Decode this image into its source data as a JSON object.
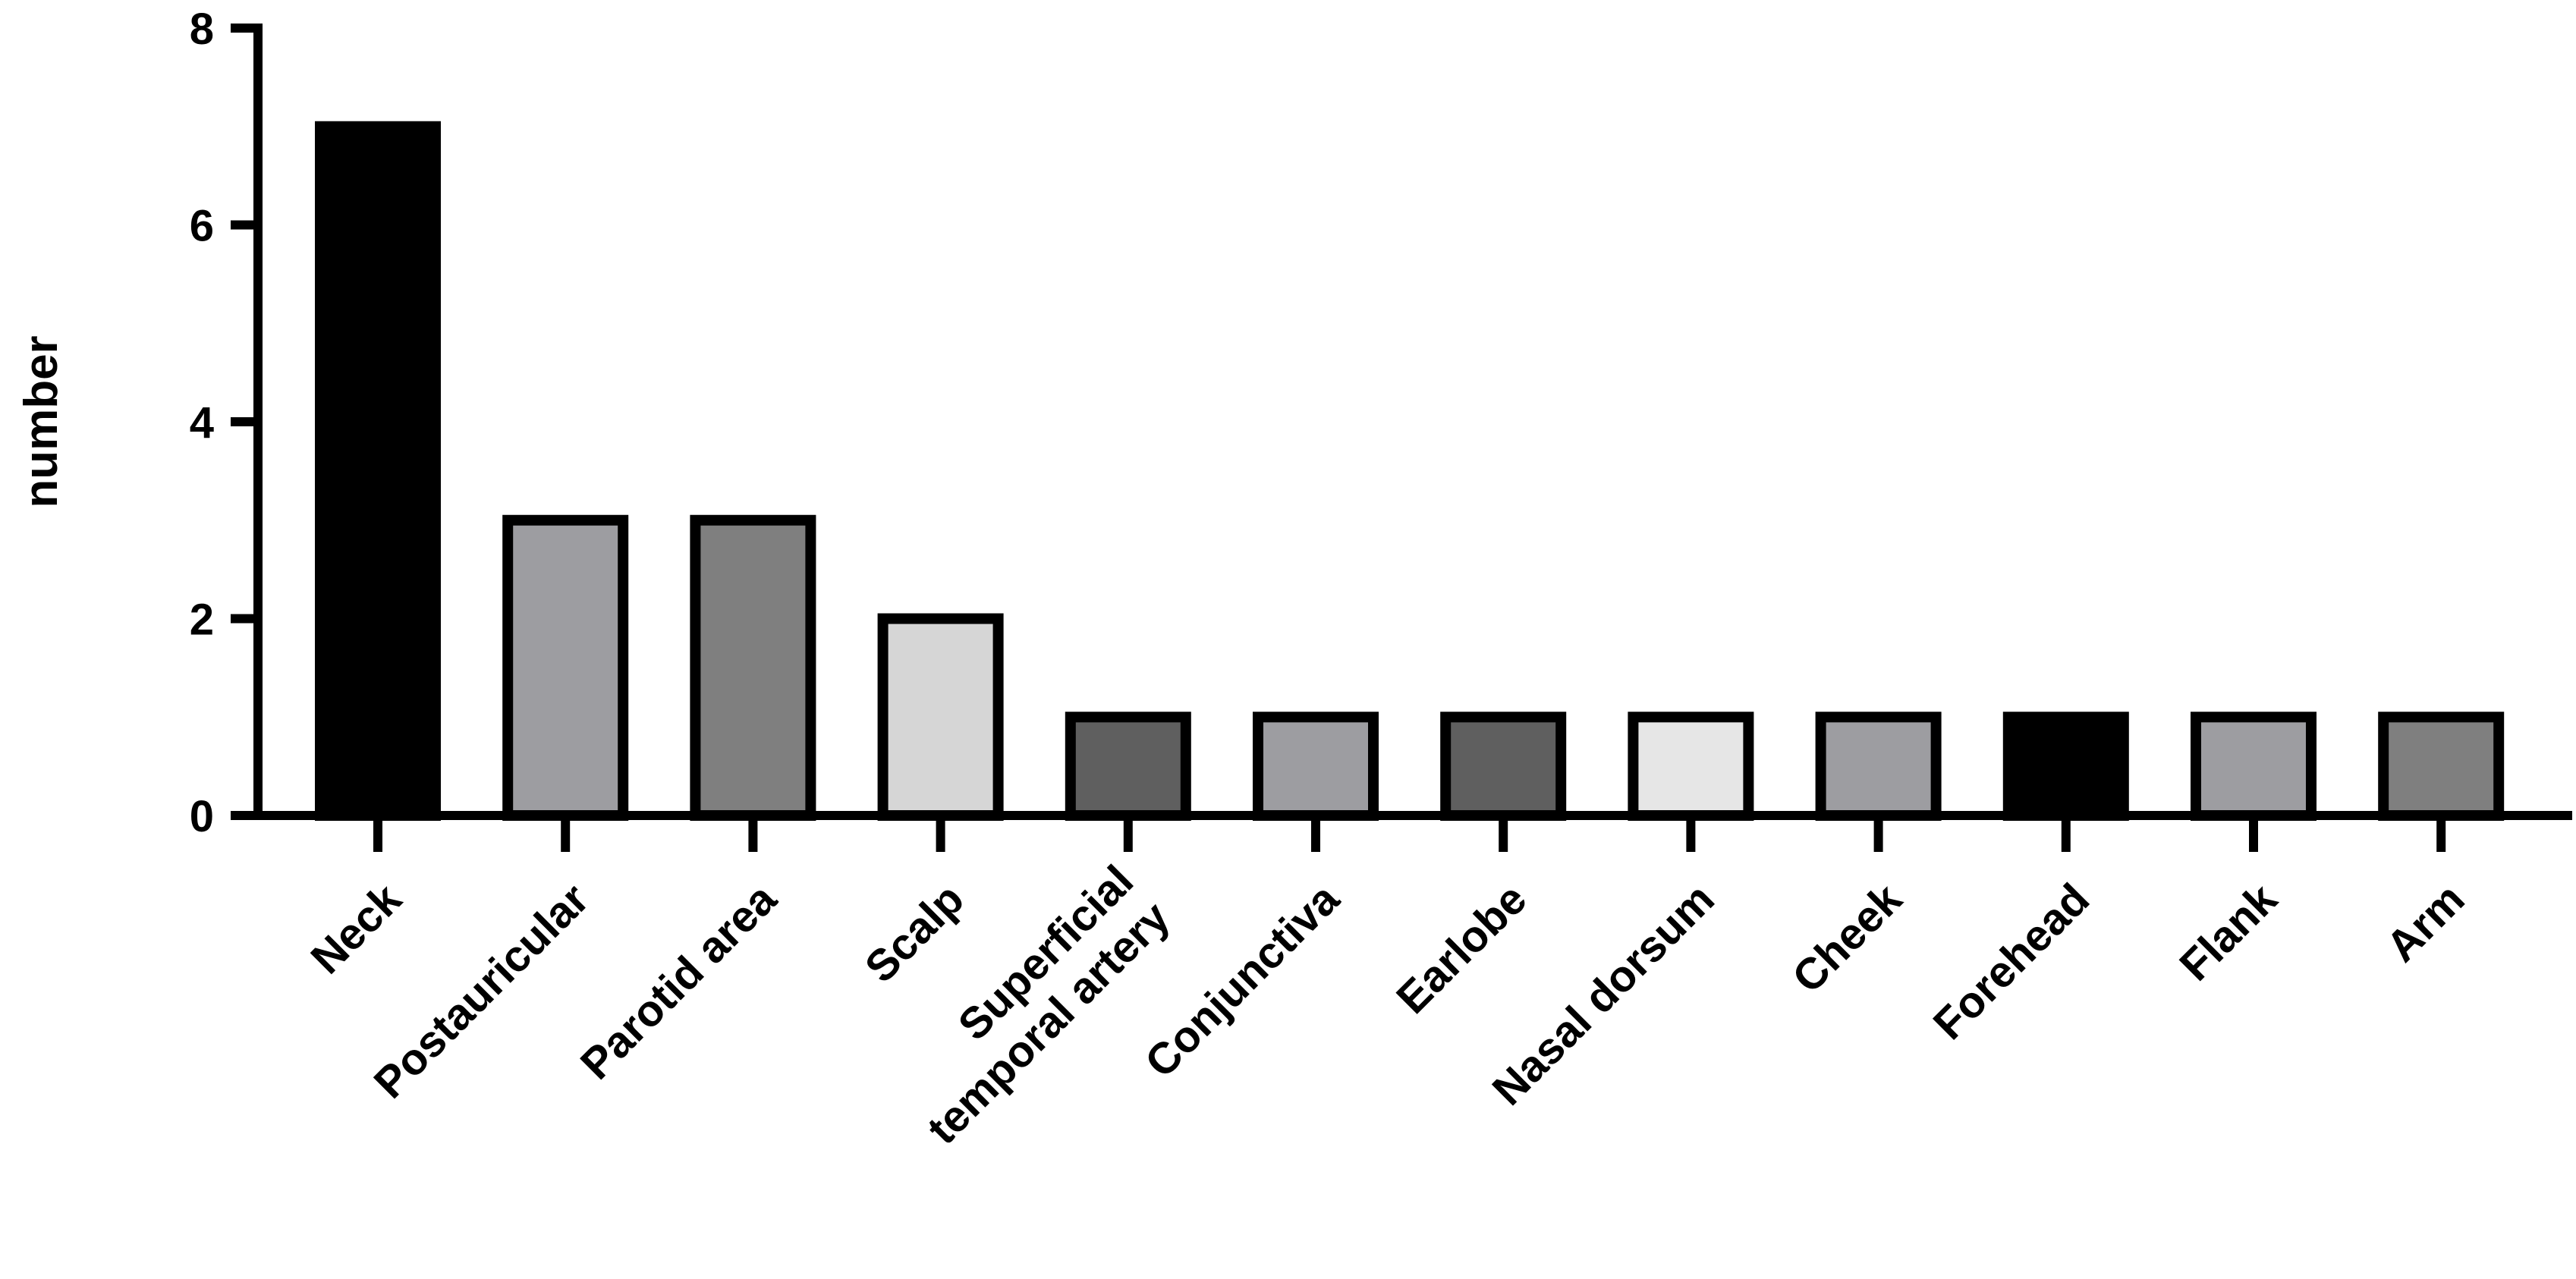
{
  "chart_data": {
    "type": "bar",
    "title": "",
    "xlabel": "",
    "ylabel": "number",
    "ylim": [
      0,
      8
    ],
    "yticks": [
      0,
      2,
      4,
      6,
      8
    ],
    "grid": false,
    "categories": [
      [
        "Neck"
      ],
      [
        "Postauricular"
      ],
      [
        "Parotid area"
      ],
      [
        "Scalp"
      ],
      [
        "Superficial",
        "temporal artery"
      ],
      [
        "Conjunctiva"
      ],
      [
        "Earlobe"
      ],
      [
        "Nasal dorsum"
      ],
      [
        "Cheek"
      ],
      [
        "Forehead"
      ],
      [
        "Flank"
      ],
      [
        "Arm"
      ]
    ],
    "values": [
      7,
      3,
      3,
      2,
      1,
      1,
      1,
      1,
      1,
      1,
      1,
      1
    ],
    "bar_colors": [
      "#000000",
      "#9d9da1",
      "#7f7f7f",
      "#d6d6d6",
      "#5f5f5f",
      "#9d9da1",
      "#5f5f5f",
      "#e6e6e6",
      "#9d9da1",
      "#000000",
      "#9d9da1",
      "#7f7f7f"
    ]
  }
}
